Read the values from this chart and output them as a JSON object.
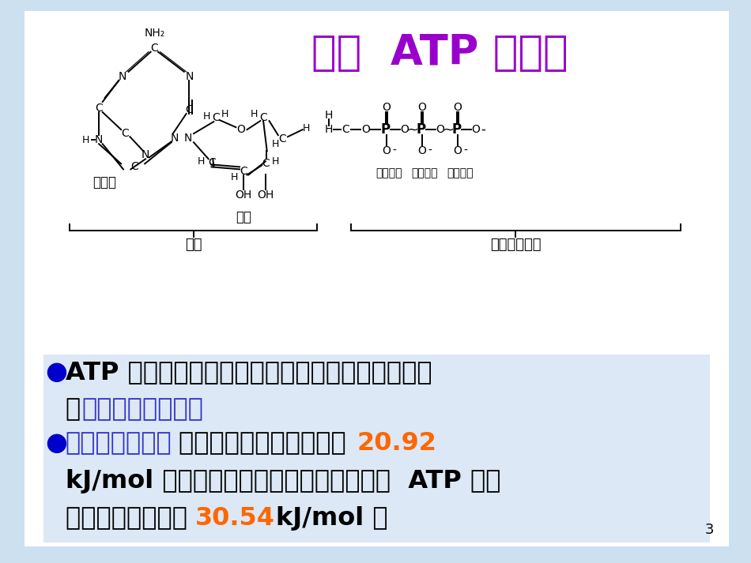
{
  "bg_color": "#cde0f0",
  "slide_bg": "#ffffff",
  "title": "一、  ATP 的结构",
  "title_color": "#9900cc",
  "title_fontsize": 38,
  "page_number": "3",
  "text_bg_color": "#dce8f5",
  "para1_black": "ATP 即三磷酸腺苷，是各种活细胞内普遍存在的一\n种",
  "para1_blue": "高能磷酸化合物。",
  "para2_blue": "高能磷酸化合物",
  "para2_black1": "是指水解时释放的能量在 ",
  "para2_orange1": "20.92",
  "para2_black2": "\nkJ/mol （千焦每摩）以上的磷酸化合物，  ATP 水解\n时释放的能量高达 ",
  "para2_orange2": "30.54",
  "para2_black3": "kJ/mol 。",
  "bullet_color": "#0000cc",
  "black_color": "#000000",
  "blue_color": "#3333cc",
  "orange_color": "#ff6600",
  "text_fontsize": 23
}
